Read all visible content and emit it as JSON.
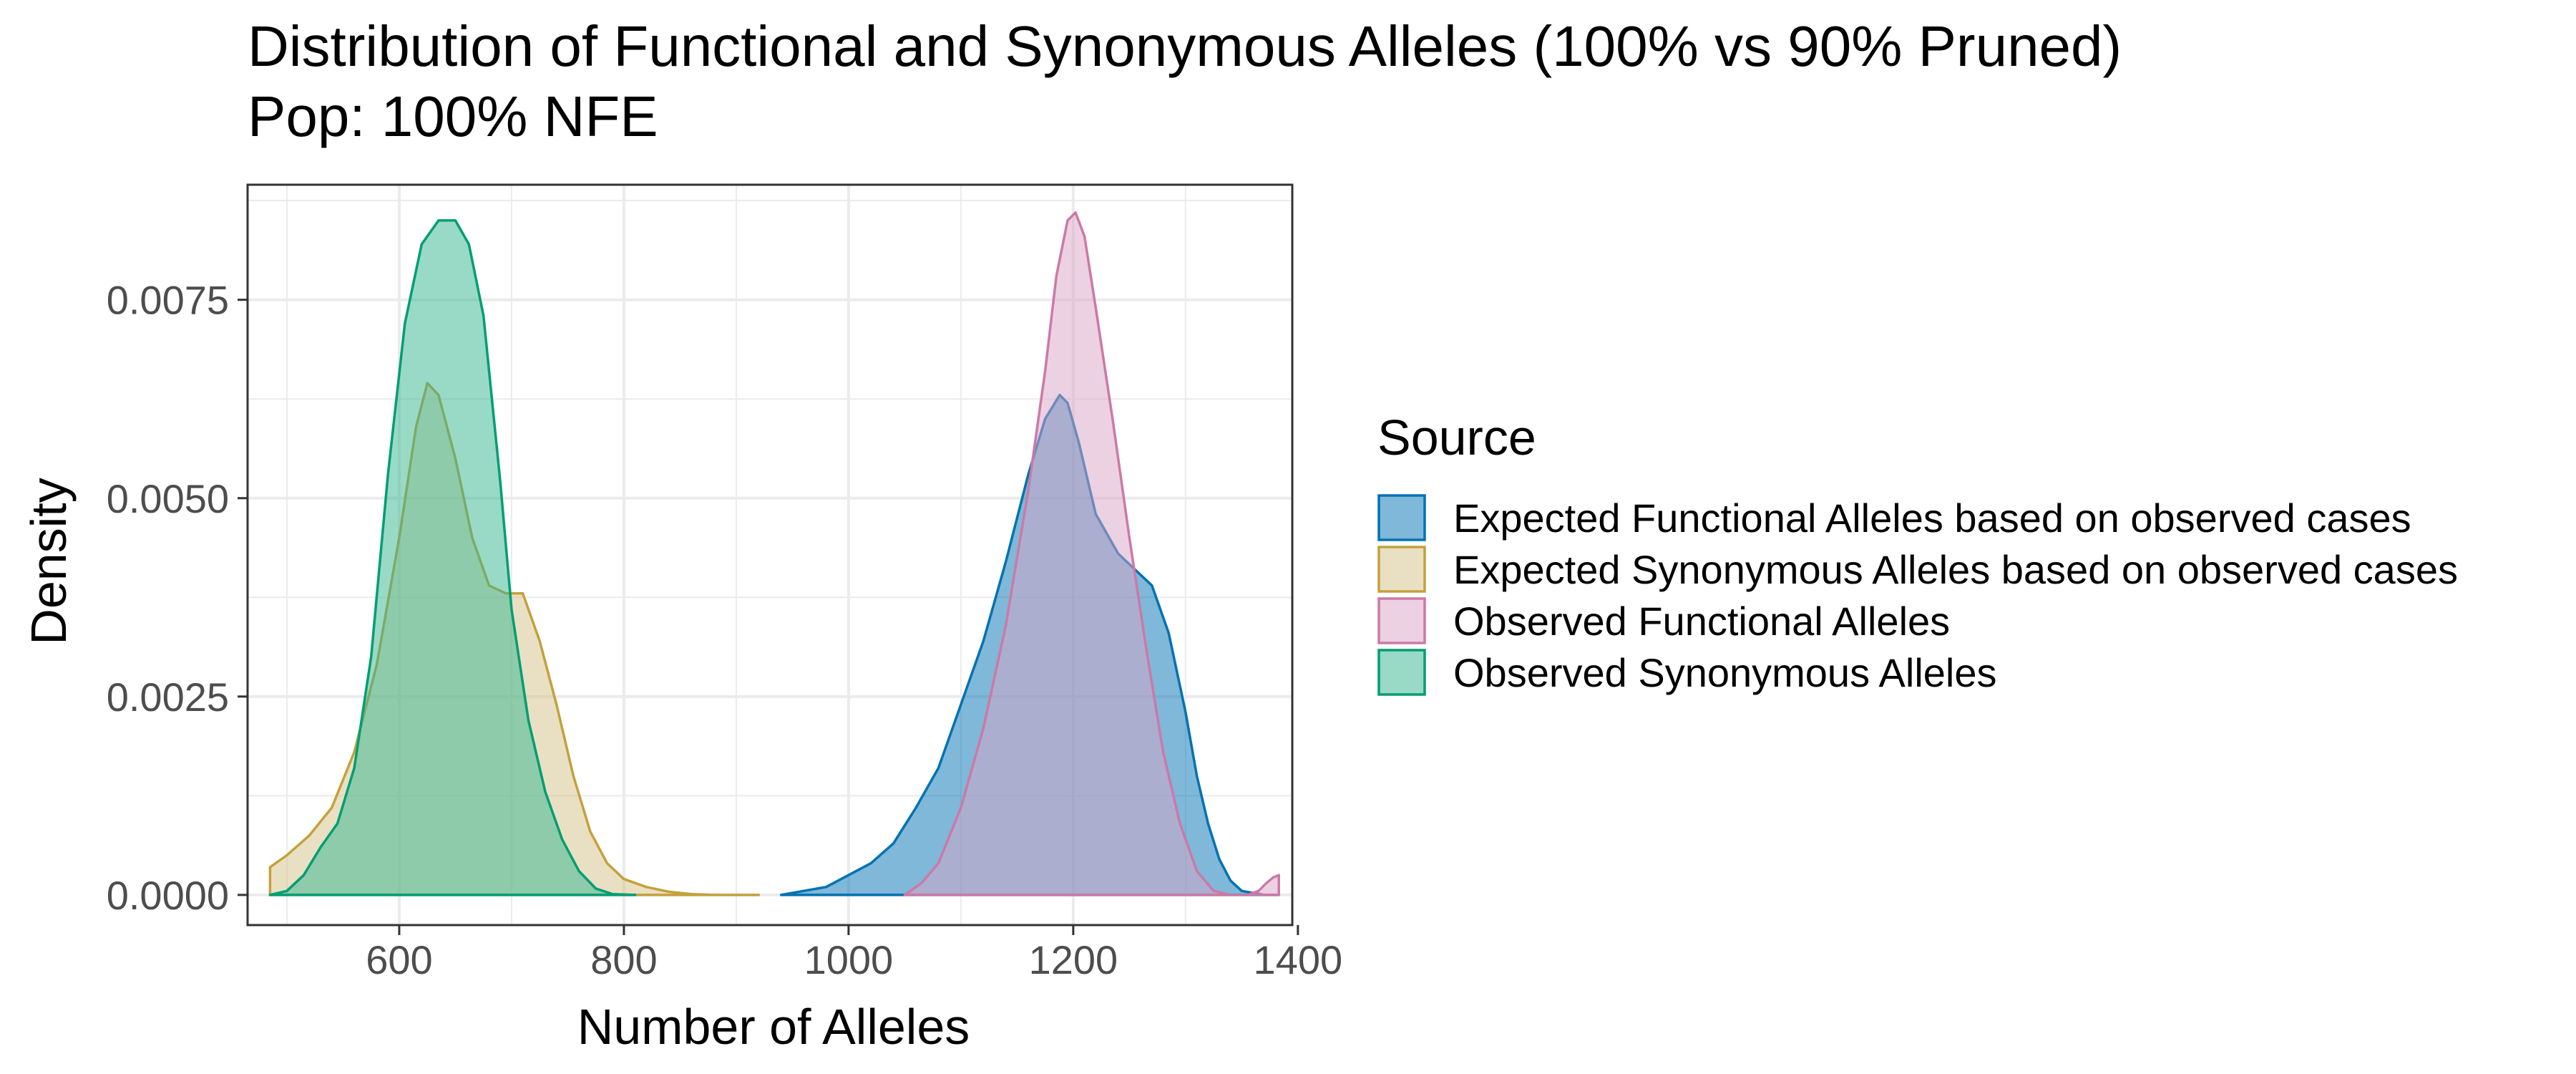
{
  "chart_data": {
    "type": "area",
    "title": "Distribution of Functional and Synonymous Alleles (100% vs 90% Pruned)",
    "subtitle": "Pop: 100% NFE",
    "xlabel": "Number of Alleles",
    "ylabel": "Density",
    "xlim": [
      465,
      1395
    ],
    "ylim": [
      -0.00038,
      0.00895
    ],
    "xticks": [
      600,
      800,
      1000,
      1200,
      1400
    ],
    "xtick_labels": [
      "600",
      "800",
      "1000",
      "1200",
      "1400"
    ],
    "yticks": [
      0,
      0.0025,
      0.005,
      0.0075
    ],
    "ytick_labels": [
      "0.0000",
      "0.0025",
      "0.0050",
      "0.0075"
    ],
    "grid": true,
    "legend": {
      "title": "Source",
      "position": "right"
    },
    "series": [
      {
        "name": "Expected Functional Alleles based on observed cases",
        "color": "#0072B2",
        "fill": "#0072B2",
        "x": [
          940,
          980,
          1000,
          1020,
          1040,
          1060,
          1080,
          1100,
          1120,
          1140,
          1160,
          1175,
          1188,
          1195,
          1205,
          1220,
          1240,
          1255,
          1270,
          1285,
          1300,
          1310,
          1320,
          1330,
          1340,
          1350,
          1370,
          1383
        ],
        "y": [
          0,
          0.0001,
          0.00025,
          0.0004,
          0.00065,
          0.0011,
          0.0016,
          0.0024,
          0.0032,
          0.0042,
          0.0053,
          0.006,
          0.0063,
          0.0062,
          0.0057,
          0.0048,
          0.0043,
          0.0041,
          0.0039,
          0.0033,
          0.0023,
          0.0015,
          0.0009,
          0.00045,
          0.00018,
          5e-05,
          0,
          0
        ]
      },
      {
        "name": "Expected Synonymous Alleles based on observed cases",
        "color": "#C4A13A",
        "fill": "#D4C28A",
        "x": [
          485,
          500,
          520,
          540,
          560,
          580,
          600,
          615,
          625,
          635,
          650,
          665,
          680,
          695,
          710,
          725,
          740,
          755,
          770,
          785,
          800,
          820,
          840,
          860,
          880,
          900,
          920
        ],
        "y": [
          0.00035,
          0.0005,
          0.00075,
          0.0011,
          0.0018,
          0.0029,
          0.0045,
          0.0059,
          0.00645,
          0.0063,
          0.0055,
          0.0045,
          0.0039,
          0.0038,
          0.0038,
          0.0032,
          0.0024,
          0.0015,
          0.0008,
          0.0004,
          0.0002,
          0.0001,
          4e-05,
          1e-05,
          0,
          0,
          0
        ]
      },
      {
        "name": "Observed Functional Alleles",
        "color": "#CC79A7",
        "fill": "#D9A3C6",
        "x": [
          1050,
          1065,
          1080,
          1100,
          1120,
          1140,
          1160,
          1175,
          1185,
          1195,
          1202,
          1210,
          1220,
          1235,
          1250,
          1265,
          1280,
          1295,
          1310,
          1325,
          1340,
          1355,
          1365,
          1372,
          1378,
          1383
        ],
        "y": [
          0,
          0.00015,
          0.0004,
          0.0011,
          0.0021,
          0.0034,
          0.0051,
          0.0066,
          0.0078,
          0.0085,
          0.0086,
          0.0083,
          0.0074,
          0.006,
          0.0045,
          0.0031,
          0.0018,
          0.0009,
          0.0003,
          5e-05,
          0,
          0,
          5e-05,
          0.00015,
          0.00022,
          0.00025
        ]
      },
      {
        "name": "Observed Synonymous Alleles",
        "color": "#009E73",
        "fill": "#33B58F",
        "x": [
          485,
          500,
          515,
          530,
          545,
          560,
          575,
          590,
          605,
          620,
          635,
          650,
          662,
          675,
          690,
          700,
          715,
          730,
          745,
          760,
          775,
          790,
          810
        ],
        "y": [
          0,
          5e-05,
          0.00025,
          0.0006,
          0.0009,
          0.0016,
          0.003,
          0.0053,
          0.0072,
          0.0082,
          0.0085,
          0.0085,
          0.0082,
          0.0073,
          0.0052,
          0.0036,
          0.0022,
          0.0013,
          0.0007,
          0.0003,
          8e-05,
          1e-05,
          0
        ]
      }
    ]
  }
}
